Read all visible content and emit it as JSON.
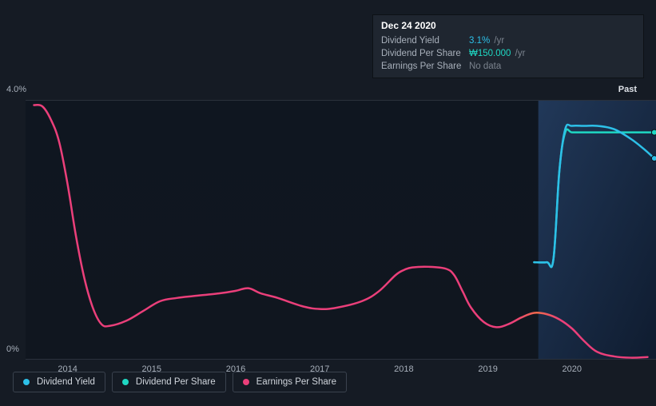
{
  "tooltip": {
    "date": "Dec 24 2020",
    "rows": [
      {
        "label": "Dividend Yield",
        "value": "3.1%",
        "unit": "/yr",
        "color": "#2dc0e8"
      },
      {
        "label": "Dividend Per Share",
        "value": "₩150.000",
        "unit": "/yr",
        "color": "#1fd8c3"
      },
      {
        "label": "Earnings Per Share",
        "value": "No data",
        "unit": "",
        "color": "#7a828d"
      }
    ]
  },
  "chart": {
    "type": "line",
    "background_color": "#151b24",
    "ylim": [
      0,
      4.0
    ],
    "yticks": [
      {
        "v": 0,
        "label": "0%"
      },
      {
        "v": 4.0,
        "label": "4.0%"
      }
    ],
    "x_start": 2013.5,
    "x_end": 2021.0,
    "xticks": [
      2014,
      2015,
      2016,
      2017,
      2018,
      2019,
      2020
    ],
    "grid_color": "#2a313c",
    "shaded_region": {
      "x_from": 2019.6,
      "x_to": 2021.0,
      "color": "#1d2b3f",
      "opacity": 0.85
    },
    "past_label": "Past",
    "series": [
      {
        "name": "Dividend Yield",
        "color": "#2dc0e8",
        "width": 2.5,
        "data": [
          [
            2019.55,
            1.5
          ],
          [
            2019.7,
            1.5
          ],
          [
            2019.78,
            1.55
          ],
          [
            2019.85,
            2.9
          ],
          [
            2019.92,
            3.55
          ],
          [
            2020.0,
            3.6
          ],
          [
            2020.15,
            3.6
          ],
          [
            2020.3,
            3.6
          ],
          [
            2020.5,
            3.55
          ],
          [
            2020.7,
            3.4
          ],
          [
            2020.85,
            3.25
          ],
          [
            2020.98,
            3.1
          ]
        ],
        "end_marker": true
      },
      {
        "name": "Dividend Per Share",
        "color": "#1fd8c3",
        "width": 2.5,
        "data": [
          [
            2019.55,
            1.5
          ],
          [
            2019.7,
            1.5
          ],
          [
            2019.78,
            1.55
          ],
          [
            2019.85,
            2.9
          ],
          [
            2019.92,
            3.5
          ],
          [
            2020.0,
            3.5
          ],
          [
            2020.15,
            3.5
          ],
          [
            2020.3,
            3.5
          ],
          [
            2020.5,
            3.5
          ],
          [
            2020.7,
            3.5
          ],
          [
            2020.85,
            3.5
          ],
          [
            2020.98,
            3.5
          ]
        ],
        "end_marker": true
      },
      {
        "name": "Earnings Per Share",
        "color_stops": [
          [
            0,
            "#eb3f7a"
          ],
          [
            0.78,
            "#eb3f7a"
          ],
          [
            0.82,
            "#f06a4b"
          ],
          [
            0.86,
            "#eb3f7a"
          ],
          [
            1,
            "#eb3f7a"
          ]
        ],
        "width": 2.5,
        "data": [
          [
            2013.6,
            3.92
          ],
          [
            2013.7,
            3.9
          ],
          [
            2013.8,
            3.7
          ],
          [
            2013.9,
            3.35
          ],
          [
            2014.0,
            2.7
          ],
          [
            2014.1,
            1.9
          ],
          [
            2014.2,
            1.25
          ],
          [
            2014.3,
            0.8
          ],
          [
            2014.4,
            0.55
          ],
          [
            2014.5,
            0.52
          ],
          [
            2014.7,
            0.6
          ],
          [
            2014.9,
            0.75
          ],
          [
            2015.1,
            0.9
          ],
          [
            2015.3,
            0.95
          ],
          [
            2015.5,
            0.98
          ],
          [
            2015.8,
            1.02
          ],
          [
            2016.0,
            1.06
          ],
          [
            2016.15,
            1.1
          ],
          [
            2016.3,
            1.02
          ],
          [
            2016.5,
            0.95
          ],
          [
            2016.8,
            0.82
          ],
          [
            2017.0,
            0.78
          ],
          [
            2017.2,
            0.8
          ],
          [
            2017.5,
            0.9
          ],
          [
            2017.7,
            1.05
          ],
          [
            2017.9,
            1.3
          ],
          [
            2018.0,
            1.38
          ],
          [
            2018.1,
            1.42
          ],
          [
            2018.3,
            1.43
          ],
          [
            2018.5,
            1.4
          ],
          [
            2018.6,
            1.3
          ],
          [
            2018.7,
            1.05
          ],
          [
            2018.8,
            0.8
          ],
          [
            2018.95,
            0.58
          ],
          [
            2019.1,
            0.5
          ],
          [
            2019.25,
            0.55
          ],
          [
            2019.4,
            0.65
          ],
          [
            2019.55,
            0.72
          ],
          [
            2019.7,
            0.7
          ],
          [
            2019.85,
            0.62
          ],
          [
            2020.0,
            0.48
          ],
          [
            2020.15,
            0.28
          ],
          [
            2020.3,
            0.12
          ],
          [
            2020.5,
            0.05
          ],
          [
            2020.7,
            0.03
          ],
          [
            2020.9,
            0.04
          ]
        ],
        "end_marker": false
      }
    ]
  },
  "legend": {
    "items": [
      {
        "label": "Dividend Yield",
        "color": "#2dc0e8"
      },
      {
        "label": "Dividend Per Share",
        "color": "#1fd8c3"
      },
      {
        "label": "Earnings Per Share",
        "color": "#eb3f7a"
      }
    ]
  }
}
